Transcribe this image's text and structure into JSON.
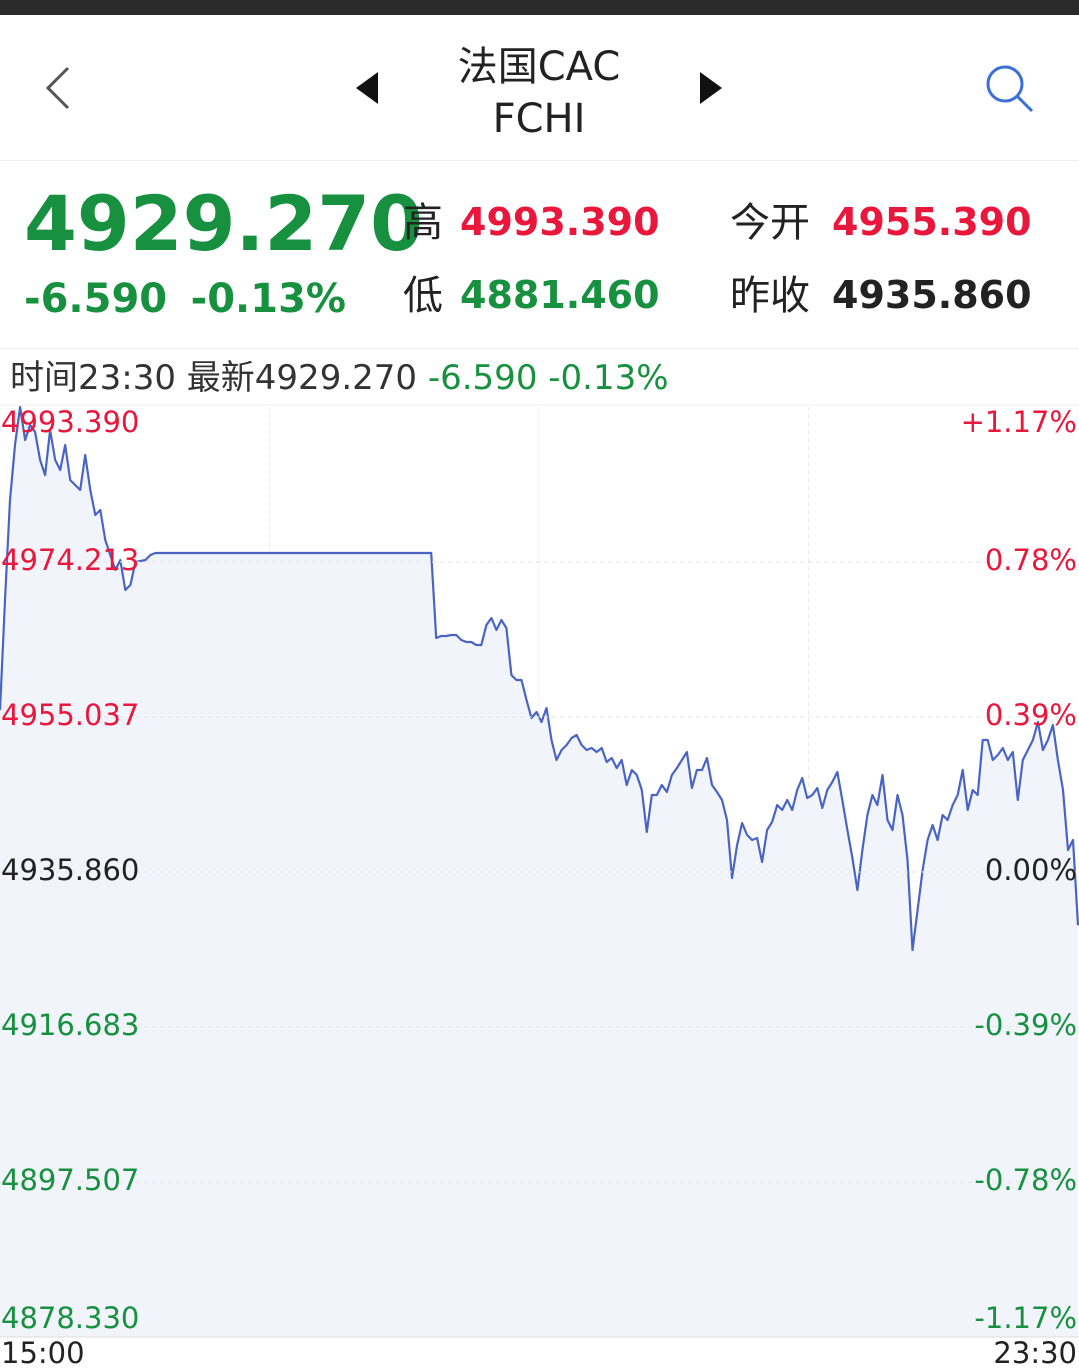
{
  "header": {
    "title": "法国CAC",
    "subtitle": "FCHI"
  },
  "quote": {
    "price": "4929.270",
    "change": "-6.590",
    "change_pct": "-0.13%",
    "high_label": "高",
    "high": "4993.390",
    "low_label": "低",
    "low": "4881.460",
    "open_label": "今开",
    "open": "4955.390",
    "prev_label": "昨收",
    "prev": "4935.860"
  },
  "info": {
    "time_label": "时间",
    "time": "23:30",
    "latest_label": "最新",
    "latest": "4929.270",
    "change": "-6.590",
    "change_pct": "-0.13%"
  },
  "chart_data": {
    "type": "line",
    "xlabels": [
      "15:00",
      "23:30"
    ],
    "ylim": [
      4878.33,
      4993.39
    ],
    "yticks": [
      {
        "value": 4878.33,
        "label": "4878.330"
      },
      4897.507,
      4916.683,
      {
        "value": 4935.86,
        "label": "4935.860"
      },
      4955.037,
      4974.213,
      {
        "value": 4993.39,
        "label": "4993.390"
      }
    ],
    "y2lim": [
      -1.17,
      1.17
    ],
    "y2ticks": [
      {
        "value": -1.17,
        "label": "-1.17%"
      },
      {
        "value": -0.78,
        "label": "-0.78%"
      },
      {
        "value": -0.39,
        "label": "-0.39%"
      },
      {
        "value": 0,
        "label": "0.00%"
      },
      {
        "value": 0.39,
        "label": "0.39%"
      },
      {
        "value": 0.78,
        "label": "0.78%"
      },
      {
        "value": 1.17,
        "label": "+1.17%"
      }
    ],
    "grid": true,
    "up_color": "#e8173b",
    "down_color": "#17913f",
    "flat_color": "#222222",
    "series": [
      {
        "color": "#4a64c4",
        "values": [
          4955.9,
          4969.51,
          4981.88,
          4988.69,
          4993.39,
          4989.31,
          4991.16,
          4990.3,
          4986.83,
          4984.98,
          4990.54,
          4986.83,
          4985.6,
          4988.69,
          4984.36,
          4983.74,
          4983.12,
          4987.45,
          4983.12,
          4980.03,
          4980.65,
          4976.94,
          4975.08,
          4973.22,
          4974.46,
          4970.75,
          4971.37,
          4974.21,
          4974.34,
          4974.46,
          4975.08,
          4975.33,
          4975.33,
          4975.33,
          4975.33,
          4975.33,
          4975.33,
          4975.33,
          4975.33,
          4975.33,
          4975.33,
          4975.33,
          4975.33,
          4975.33,
          4975.33,
          4975.33,
          4975.33,
          4975.33,
          4975.33,
          4975.33,
          4975.33,
          4975.33,
          4975.33,
          4975.33,
          4975.33,
          4975.33,
          4975.33,
          4975.33,
          4975.33,
          4975.33,
          4975.33,
          4975.33,
          4975.33,
          4975.33,
          4975.33,
          4975.33,
          4975.33,
          4975.33,
          4975.33,
          4975.33,
          4975.33,
          4975.33,
          4975.33,
          4975.33,
          4975.33,
          4975.33,
          4975.33,
          4975.33,
          4975.33,
          4975.33,
          4975.33,
          4975.33,
          4975.33,
          4975.33,
          4975.33,
          4975.33,
          4975.33,
          4964.81,
          4965.06,
          4965.06,
          4965.18,
          4965.18,
          4964.56,
          4964.32,
          4964.32,
          4963.94,
          4963.94,
          4966.42,
          4967.28,
          4965.8,
          4967.04,
          4966.05,
          4960.23,
          4959.61,
          4959.61,
          4957.14,
          4954.91,
          4955.66,
          4954.42,
          4956.15,
          4952.19,
          4949.72,
          4950.95,
          4951.57,
          4952.44,
          4952.81,
          4951.57,
          4950.95,
          4951.2,
          4950.71,
          4951.2,
          4949.47,
          4949.96,
          4948.73,
          4949.72,
          4946.62,
          4948.48,
          4947.86,
          4946.01,
          4940.81,
          4945.39,
          4945.39,
          4946.62,
          4945.76,
          4947.86,
          4948.73,
          4949.72,
          4950.71,
          4946.25,
          4948.48,
          4948.48,
          4949.96,
          4946.62,
          4945.76,
          4944.77,
          4942.29,
          4935.12,
          4939.2,
          4941.92,
          4940.44,
          4939.82,
          4940.07,
          4937.1,
          4941.06,
          4942.05,
          4944.15,
          4943.53,
          4944.77,
          4943.53,
          4946.01,
          4947.49,
          4945.02,
          4945.39,
          4946.25,
          4943.78,
          4946.01,
          4946.99,
          4948.23,
          4944.77,
          4941.06,
          4937.59,
          4933.63,
          4938.58,
          4942.91,
          4945.39,
          4944.15,
          4947.86,
          4942.29,
          4941.06,
          4945.39,
          4942.91,
          4937.34,
          4926.21,
          4931.16,
          4936.11,
          4939.82,
          4941.67,
          4939.82,
          4942.91,
          4942.29,
          4944.15,
          4945.39,
          4948.48,
          4943.53,
          4946.01,
          4945.39,
          4952.19,
          4952.19,
          4949.72,
          4950.34,
          4951.2,
          4949.72,
          4950.71,
          4944.77,
          4949.72,
          4950.95,
          4952.19,
          4954.42,
          4950.95,
          4952.19,
          4954.05,
          4949.72,
          4946.01,
          4938.58,
          4939.82,
          4929.27
        ]
      }
    ]
  }
}
